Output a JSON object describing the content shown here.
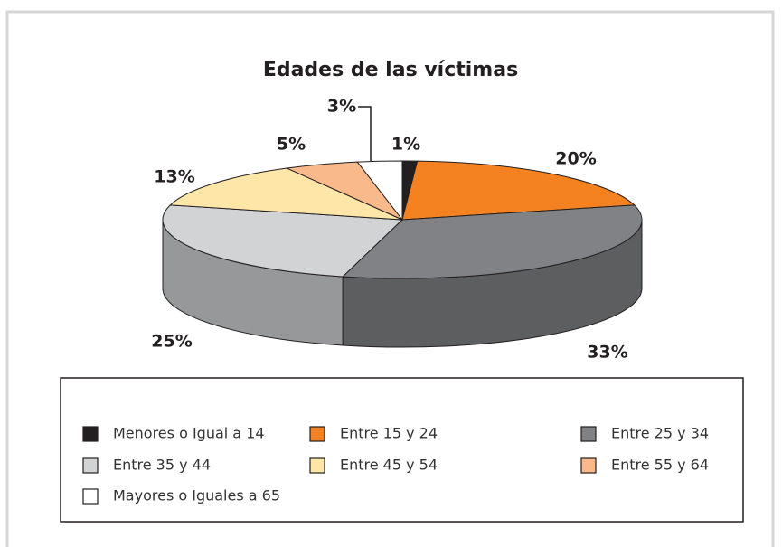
{
  "chart_data": {
    "type": "pie",
    "title": "Edades de las víctimas",
    "categories": [
      "Menores o Igual a 14",
      "Entre 15 y 24",
      "Entre 25 y 34",
      "Entre 35 y 44",
      "Entre 45 y 54",
      "Entre 55 y 64",
      "Mayores o Iguales a 65"
    ],
    "values": [
      1,
      20,
      33,
      25,
      13,
      5,
      3
    ],
    "value_labels": [
      "1%",
      "20%",
      "33%",
      "25%",
      "13%",
      "5%",
      "3%"
    ],
    "colors": [
      "#231f20",
      "#f58220",
      "#808285",
      "#d1d3d4",
      "#fee6a8",
      "#f9b98a",
      "#ffffff"
    ],
    "legend": "bottom"
  }
}
